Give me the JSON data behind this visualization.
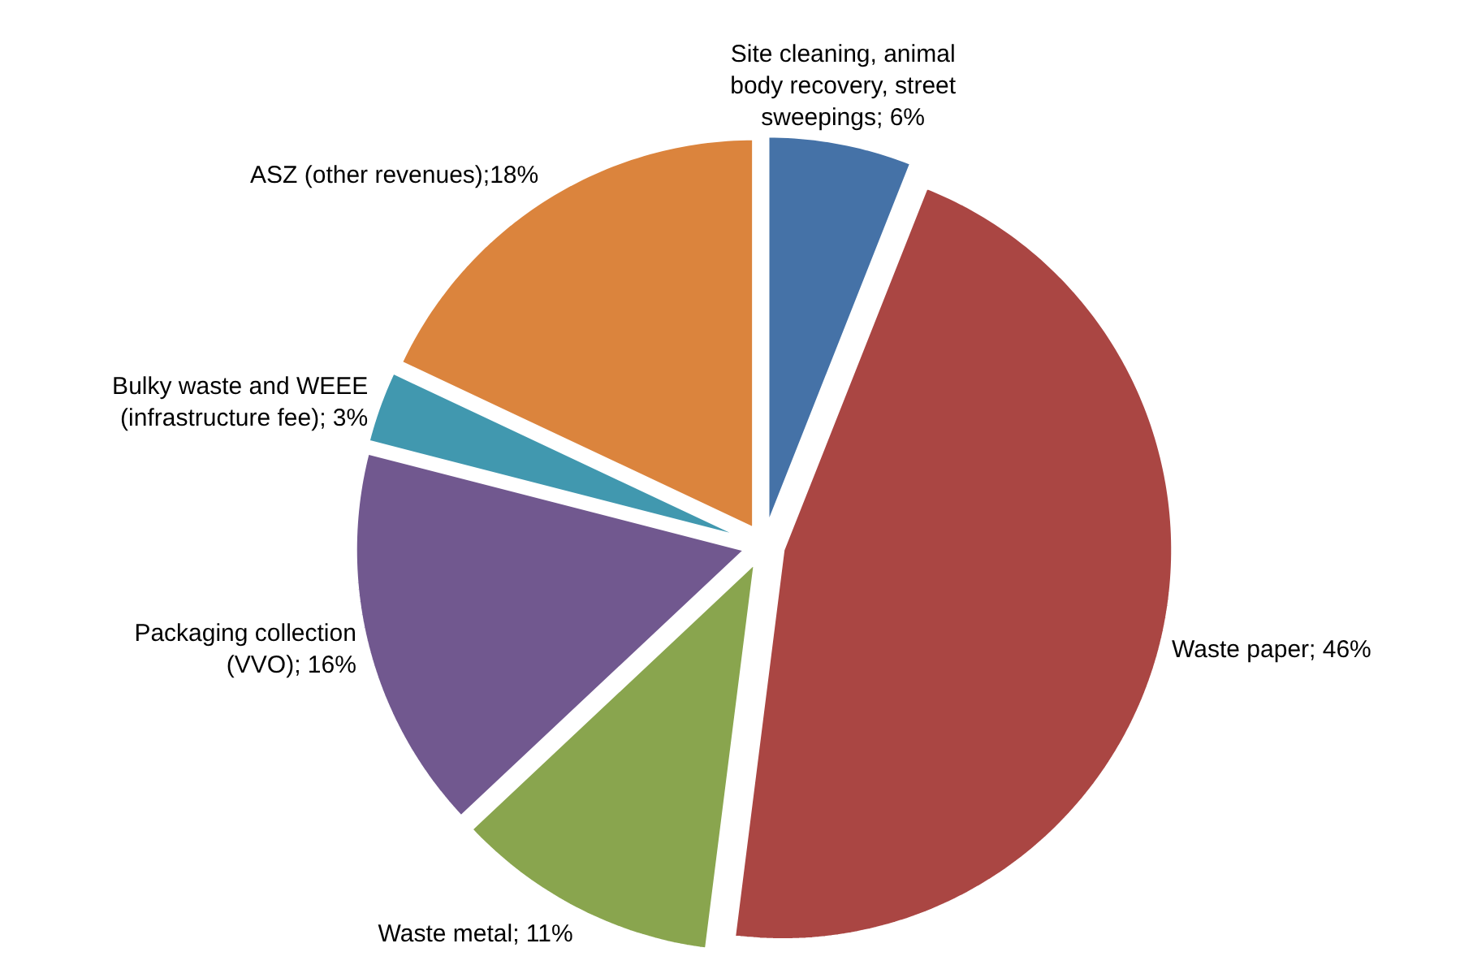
{
  "chart_data": {
    "type": "pie",
    "categories": [
      "Site cleaning, animal body recovery, street sweepings",
      "Waste paper",
      "Waste metal",
      "Packaging collection (VVO)",
      "Bulky waste and WEEE (infrastructure fee)",
      "ASZ (other revenues)"
    ],
    "values": [
      6,
      46,
      11,
      16,
      3,
      18
    ],
    "value_labels": [
      "; 6%",
      "; 46%",
      "; 11%",
      "; 16%",
      "; 3%",
      ";18%"
    ],
    "colors": [
      "#4572a7",
      "#aa4643",
      "#89a54e",
      "#71588f",
      "#4198af",
      "#db843d"
    ]
  }
}
